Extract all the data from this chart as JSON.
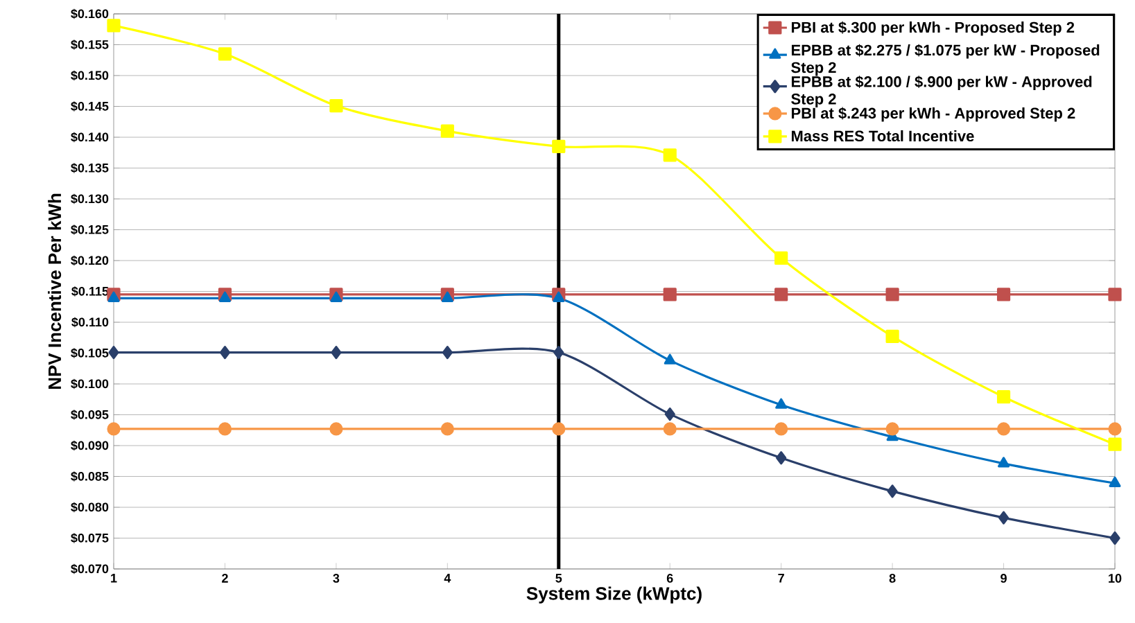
{
  "chart_data": {
    "type": "line",
    "xlabel": "System Size (kWptc)",
    "ylabel": "NPV Incentive Per kWh",
    "x": [
      1,
      2,
      3,
      4,
      5,
      6,
      7,
      8,
      9,
      10
    ],
    "xlim": [
      1,
      10
    ],
    "xticks": [
      1,
      2,
      3,
      4,
      5,
      6,
      7,
      8,
      9,
      10
    ],
    "ylim": [
      0.07,
      0.16
    ],
    "yticks": [
      {
        "value": 0.07,
        "label": "$0.070"
      },
      {
        "value": 0.075,
        "label": "$0.075"
      },
      {
        "value": 0.08,
        "label": "$0.080"
      },
      {
        "value": 0.085,
        "label": "$0.085"
      },
      {
        "value": 0.09,
        "label": "$0.090"
      },
      {
        "value": 0.095,
        "label": "$0.095"
      },
      {
        "value": 0.1,
        "label": "$0.100"
      },
      {
        "value": 0.105,
        "label": "$0.105"
      },
      {
        "value": 0.11,
        "label": "$0.110"
      },
      {
        "value": 0.115,
        "label": "$0.115"
      },
      {
        "value": 0.12,
        "label": "$0.120"
      },
      {
        "value": 0.125,
        "label": "$0.125"
      },
      {
        "value": 0.13,
        "label": "$0.130"
      },
      {
        "value": 0.135,
        "label": "$0.135"
      },
      {
        "value": 0.14,
        "label": "$0.140"
      },
      {
        "value": 0.145,
        "label": "$0.145"
      },
      {
        "value": 0.15,
        "label": "$0.150"
      },
      {
        "value": 0.155,
        "label": "$0.155"
      },
      {
        "value": 0.16,
        "label": "$0.160"
      }
    ],
    "grid": "y",
    "legend": "top right",
    "ref_lines": [
      {
        "axis": "x",
        "value": 5,
        "color": "#000000"
      }
    ],
    "series": [
      {
        "name": "PBI at $.300 per kWh - Proposed Step 2",
        "color": "#c0504d",
        "marker": "square",
        "values": [
          0.1145,
          0.1145,
          0.1145,
          0.1145,
          0.1145,
          0.1145,
          0.1145,
          0.1145,
          0.1145,
          0.1145
        ]
      },
      {
        "name": "EPBB at $2.275 / $1.075 per kW - Proposed Step 2",
        "color": "#0070c0",
        "marker": "triangle",
        "values": [
          0.1139,
          0.1139,
          0.1139,
          0.1139,
          0.1139,
          0.1038,
          0.0966,
          0.0914,
          0.0871,
          0.0839
        ]
      },
      {
        "name": "EPBB at $2.100 / $.900 per kW - Approved Step 2",
        "color": "#2a3f6a",
        "marker": "diamond",
        "values": [
          0.1051,
          0.1051,
          0.1051,
          0.1051,
          0.1051,
          0.0951,
          0.088,
          0.0826,
          0.0783,
          0.075
        ]
      },
      {
        "name": "PBI at $.243 per kWh - Approved Step 2",
        "color": "#f79646",
        "marker": "circle",
        "values": [
          0.0927,
          0.0927,
          0.0927,
          0.0927,
          0.0927,
          0.0927,
          0.0927,
          0.0927,
          0.0927,
          0.0927
        ]
      },
      {
        "name": "Mass RES Total Incentive",
        "color": "#ffff00",
        "marker": "square",
        "values": [
          0.1581,
          0.1535,
          0.1451,
          0.141,
          0.1385,
          0.1371,
          0.1204,
          0.1077,
          0.0979,
          0.0902
        ]
      }
    ]
  }
}
